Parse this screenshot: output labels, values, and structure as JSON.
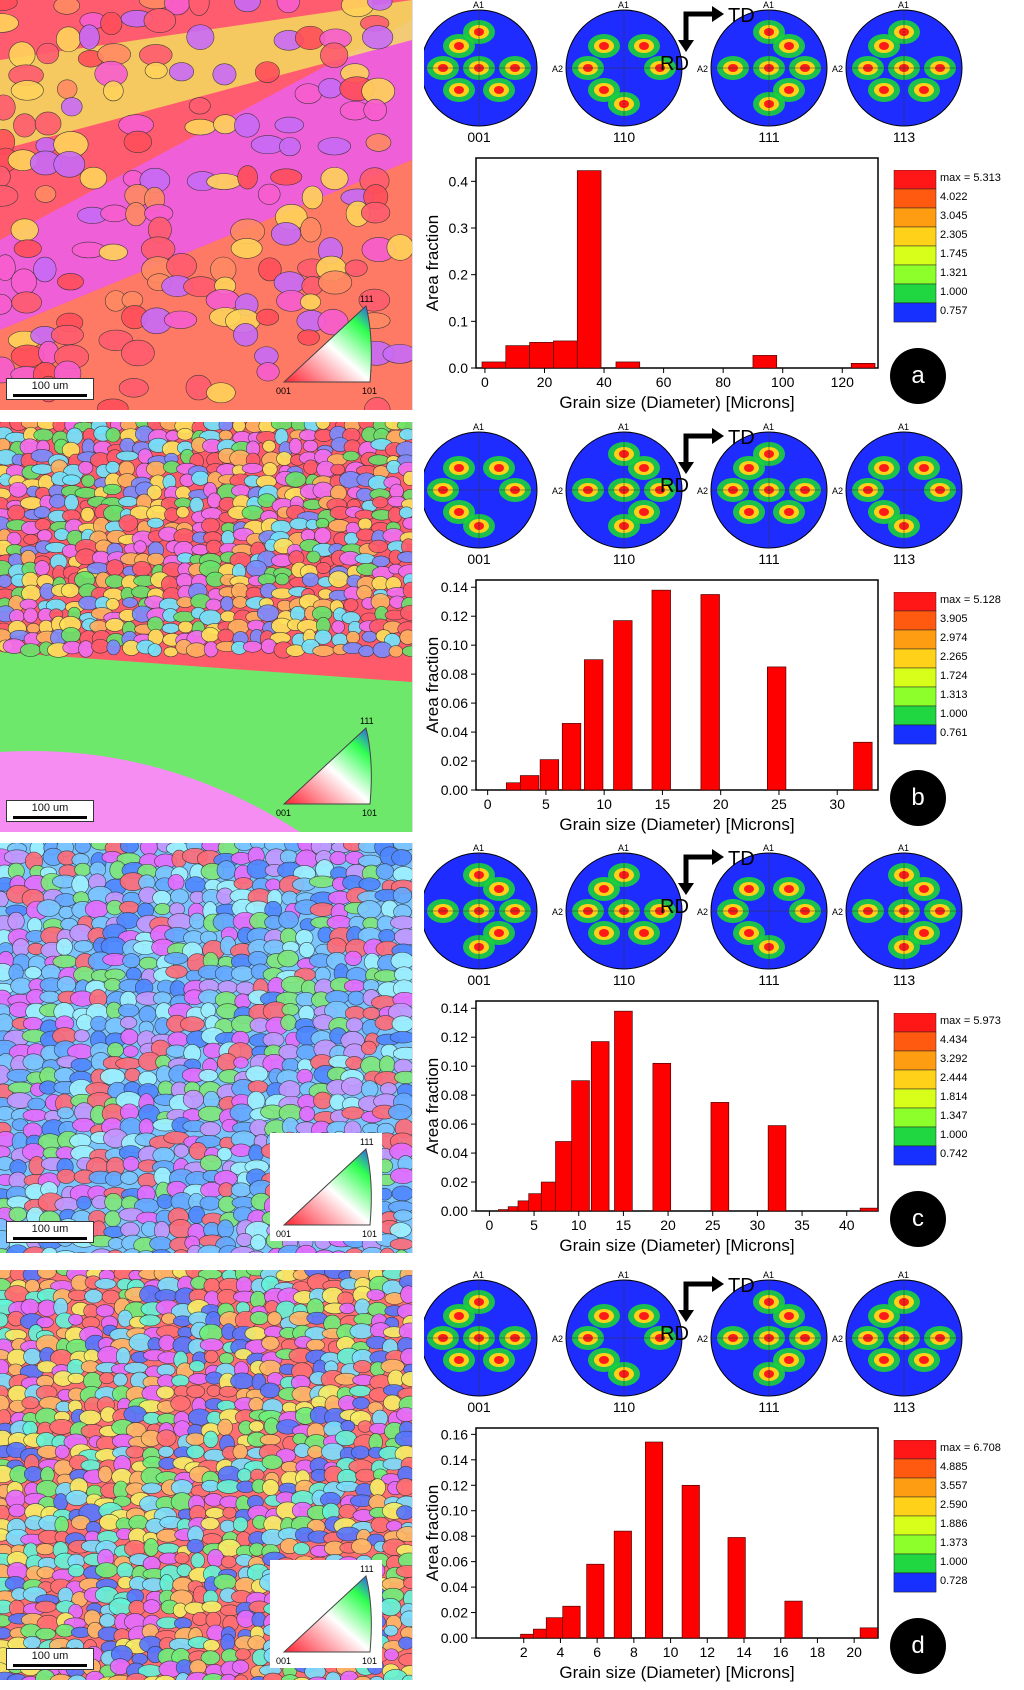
{
  "common": {
    "scale_bar": "100 um",
    "ipf_labels": {
      "top": "111",
      "left": "001",
      "right": "101"
    },
    "pole_figure_labels": [
      "001",
      "110",
      "111",
      "113"
    ],
    "pf_axis_top": "A1",
    "pf_axis_left": "A2",
    "td_label": "TD",
    "rd_label": "RD",
    "xlabel": "Grain size (Diameter) [Microns]",
    "ylabel": "Area fraction"
  },
  "chart_data": [
    {
      "panel": "a",
      "type": "bar",
      "xlabel": "Grain size (Diameter) [Microns]",
      "ylabel": "Area fraction",
      "xlim": [
        -3,
        132
      ],
      "ylim": [
        0,
        0.45
      ],
      "xticks": [
        0,
        20,
        40,
        60,
        80,
        100,
        120
      ],
      "yticks": [
        0.0,
        0.1,
        0.2,
        0.3,
        0.4
      ],
      "bar_width": 8,
      "x": [
        3,
        11,
        19,
        27,
        35,
        48,
        94,
        127
      ],
      "values": [
        0.013,
        0.048,
        0.055,
        0.058,
        0.423,
        0.013,
        0.027,
        0.01
      ],
      "colorbar": {
        "max_label": "max = 5.313",
        "levels": [
          "4.022",
          "3.045",
          "2.305",
          "1.745",
          "1.321",
          "1.000",
          "0.757"
        ]
      }
    },
    {
      "panel": "b",
      "type": "bar",
      "xlabel": "Grain size (Diameter) [Microns]",
      "ylabel": "Area fraction",
      "xlim": [
        -1,
        33.5
      ],
      "ylim": [
        0,
        0.145
      ],
      "xticks": [
        0,
        5,
        10,
        15,
        20,
        25,
        30
      ],
      "yticks": [
        0.0,
        0.02,
        0.04,
        0.06,
        0.08,
        0.1,
        0.12,
        0.14
      ],
      "bar_width": 1.6,
      "x": [
        2.4,
        3.6,
        5.3,
        7.2,
        9.1,
        11.6,
        14.9,
        19.1,
        24.8,
        32.2
      ],
      "values": [
        0.005,
        0.01,
        0.021,
        0.046,
        0.09,
        0.117,
        0.138,
        0.135,
        0.085,
        0.033
      ],
      "colorbar": {
        "max_label": "max = 5.128",
        "levels": [
          "3.905",
          "2.974",
          "2.265",
          "1.724",
          "1.313",
          "1.000",
          "0.761"
        ]
      }
    },
    {
      "panel": "c",
      "type": "bar",
      "xlabel": "Grain size (Diameter) [Microns]",
      "ylabel": "Area fraction",
      "xlim": [
        -1.5,
        43.5
      ],
      "ylim": [
        0,
        0.145
      ],
      "xticks": [
        0,
        5,
        10,
        15,
        20,
        25,
        30,
        35,
        40
      ],
      "yticks": [
        0.0,
        0.02,
        0.04,
        0.06,
        0.08,
        0.1,
        0.12,
        0.14
      ],
      "bar_width": 2,
      "x": [
        2,
        3.1,
        4.2,
        5.4,
        6.8,
        8.4,
        10.2,
        12.4,
        15,
        19.3,
        25.8,
        32.2,
        42.5
      ],
      "values": [
        0.001,
        0.003,
        0.007,
        0.012,
        0.02,
        0.048,
        0.09,
        0.117,
        0.138,
        0.102,
        0.075,
        0.059,
        0.002
      ],
      "colorbar": {
        "max_label": "max = 5.973",
        "levels": [
          "4.434",
          "3.292",
          "2.444",
          "1.814",
          "1.347",
          "1.000",
          "0.742"
        ]
      }
    },
    {
      "panel": "d",
      "type": "bar",
      "xlabel": "Grain size (Diameter) [Microns]",
      "ylabel": "Area fraction",
      "xlim": [
        -0.6,
        21.3
      ],
      "ylim": [
        0,
        0.165
      ],
      "xticks": [
        2,
        4,
        6,
        8,
        10,
        12,
        14,
        16,
        18,
        20
      ],
      "yticks": [
        0.0,
        0.02,
        0.04,
        0.06,
        0.08,
        0.1,
        0.12,
        0.14,
        0.16
      ],
      "bar_width": 0.95,
      "x": [
        2.3,
        3,
        3.7,
        4.6,
        5.9,
        7.4,
        9.1,
        11.1,
        13.6,
        16.7,
        20.8
      ],
      "values": [
        0.003,
        0.007,
        0.016,
        0.025,
        0.058,
        0.084,
        0.154,
        0.12,
        0.079,
        0.029,
        0.008
      ],
      "colorbar": {
        "max_label": "max = 6.708",
        "levels": [
          "4.885",
          "3.557",
          "2.590",
          "1.886",
          "1.373",
          "1.000",
          "0.728"
        ]
      }
    }
  ]
}
